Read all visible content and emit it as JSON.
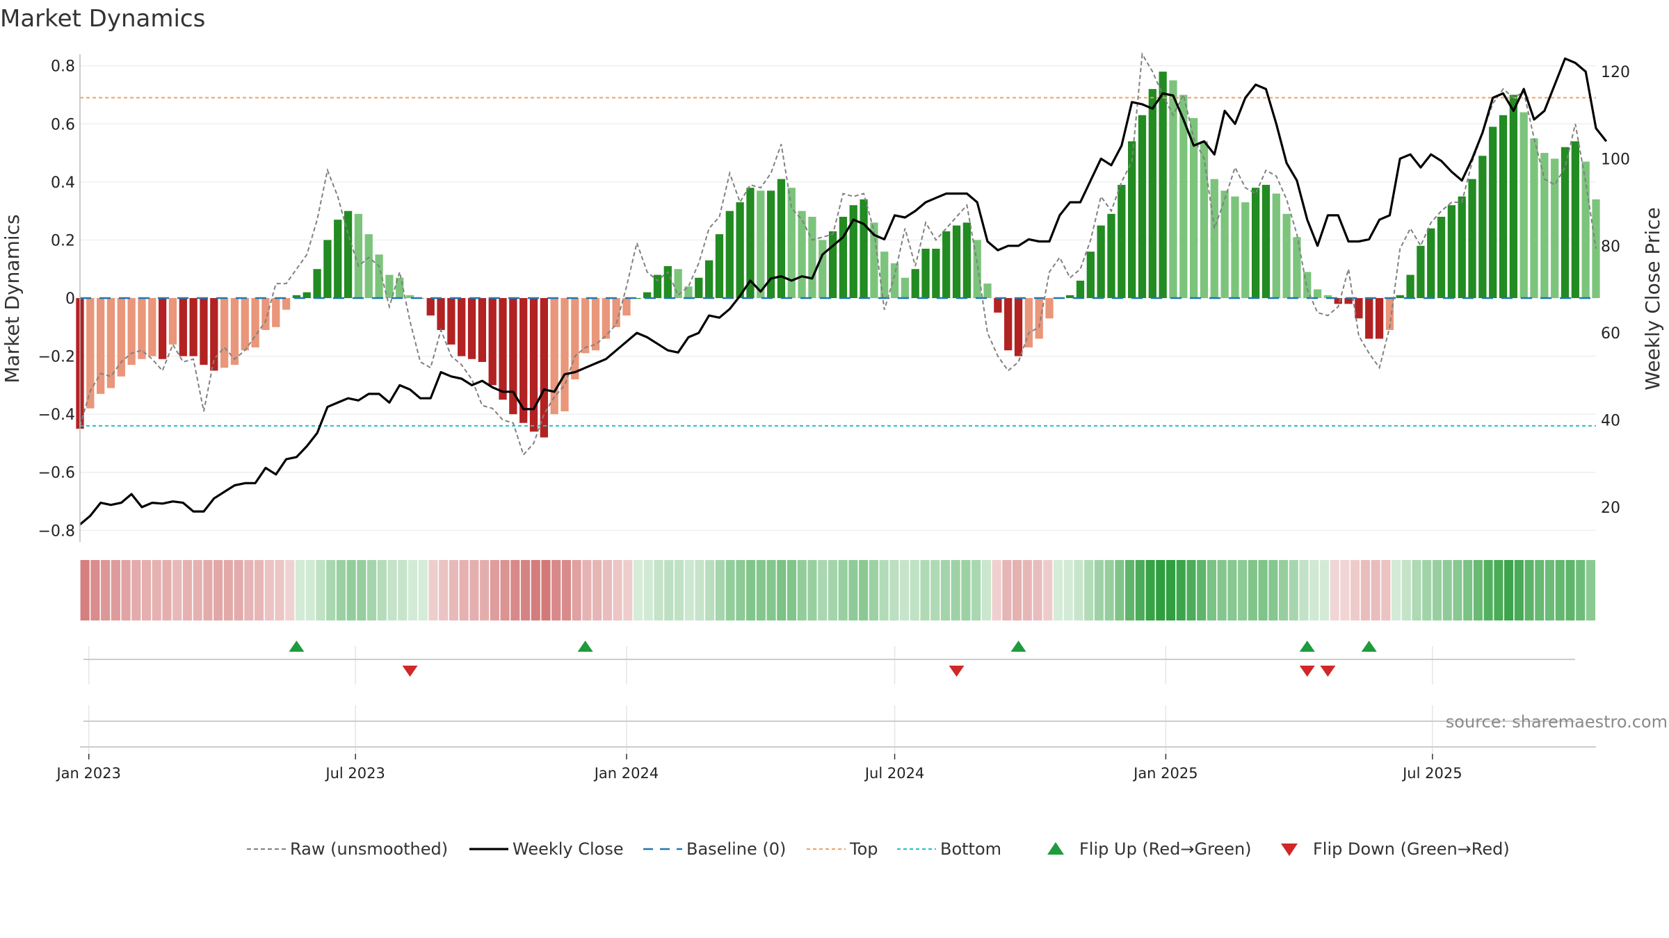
{
  "chart_data": {
    "type": "bar",
    "title": "Market Dynamics",
    "ylabel_left": "Market Dynamics",
    "ylabel_right": "Weekly Close Price",
    "ylim_left": [
      -0.84,
      0.84
    ],
    "ylim_right": [
      12,
      124
    ],
    "yticks_left": [
      "0.8",
      "0.6",
      "0.4",
      "0.2",
      "0",
      "−0.2",
      "−0.4",
      "−0.6",
      "−0.8"
    ],
    "yticks_left_values": [
      0.8,
      0.6,
      0.4,
      0.2,
      0,
      -0.2,
      -0.4,
      -0.6,
      -0.8
    ],
    "yticks_right": [
      "120",
      "100",
      "80",
      "60",
      "40",
      "20"
    ],
    "yticks_right_values": [
      120,
      100,
      80,
      60,
      40,
      20
    ],
    "x_start": "2022-12-26",
    "x_end": "2025-10-20",
    "xticks": [
      {
        "date": "2023-01-01",
        "label": "Jan 2023"
      },
      {
        "date": "2023-07-01",
        "label": "Jul 2023"
      },
      {
        "date": "2024-01-01",
        "label": "Jan 2024"
      },
      {
        "date": "2024-07-01",
        "label": "Jul 2024"
      },
      {
        "date": "2025-01-01",
        "label": "Jan 2025"
      },
      {
        "date": "2025-07-01",
        "label": "Jul 2025"
      }
    ],
    "first_week": "2022-12-26",
    "top_level": 0.69,
    "bottom_level": -0.44,
    "baseline": 0,
    "smoothed": [
      -0.45,
      -0.38,
      -0.33,
      -0.31,
      -0.27,
      -0.23,
      -0.21,
      -0.2,
      -0.21,
      -0.16,
      -0.2,
      -0.2,
      -0.23,
      -0.25,
      -0.24,
      -0.23,
      -0.18,
      -0.17,
      -0.11,
      -0.1,
      -0.04,
      0.01,
      0.02,
      0.1,
      0.2,
      0.27,
      0.3,
      0.29,
      0.22,
      0.15,
      0.08,
      0.07,
      0.01,
      0,
      -0.06,
      -0.11,
      -0.16,
      -0.2,
      -0.21,
      -0.22,
      -0.3,
      -0.35,
      -0.4,
      -0.43,
      -0.46,
      -0.48,
      -0.4,
      -0.39,
      -0.28,
      -0.19,
      -0.18,
      -0.14,
      -0.1,
      -0.06,
      0,
      0.02,
      0.08,
      0.11,
      0.1,
      0.04,
      0.07,
      0.13,
      0.22,
      0.3,
      0.33,
      0.38,
      0.37,
      0.37,
      0.41,
      0.38,
      0.3,
      0.28,
      0.2,
      0.23,
      0.28,
      0.32,
      0.34,
      0.26,
      0.16,
      0.12,
      0.07,
      0.1,
      0.17,
      0.17,
      0.23,
      0.25,
      0.26,
      0.2,
      0.05,
      -0.05,
      -0.18,
      -0.2,
      -0.17,
      -0.14,
      -0.07,
      0,
      0.01,
      0.06,
      0.16,
      0.25,
      0.29,
      0.39,
      0.54,
      0.63,
      0.72,
      0.78,
      0.75,
      0.7,
      0.62,
      0.54,
      0.41,
      0.37,
      0.35,
      0.33,
      0.38,
      0.39,
      0.36,
      0.29,
      0.21,
      0.09,
      0.03,
      0.01,
      -0.02,
      -0.02,
      -0.07,
      -0.14,
      -0.14,
      -0.11,
      0.01,
      0.08,
      0.18,
      0.24,
      0.28,
      0.32,
      0.35,
      0.41,
      0.49,
      0.59,
      0.63,
      0.7,
      0.64,
      0.55,
      0.5,
      0.48,
      0.52,
      0.54,
      0.47,
      0.34
    ],
    "raw_unsmoothed": [
      -0.44,
      -0.32,
      -0.26,
      -0.27,
      -0.22,
      -0.19,
      -0.18,
      -0.21,
      -0.25,
      -0.16,
      -0.22,
      -0.21,
      -0.39,
      -0.21,
      -0.17,
      -0.21,
      -0.18,
      -0.13,
      -0.08,
      0.05,
      0.05,
      0.1,
      0.15,
      0.27,
      0.44,
      0.35,
      0.22,
      0.11,
      0.14,
      0.11,
      -0.03,
      0.09,
      -0.08,
      -0.22,
      -0.24,
      -0.11,
      -0.2,
      -0.23,
      -0.28,
      -0.37,
      -0.38,
      -0.42,
      -0.43,
      -0.54,
      -0.5,
      -0.4,
      -0.34,
      -0.3,
      -0.2,
      -0.17,
      -0.16,
      -0.13,
      -0.09,
      0.04,
      0.19,
      0.09,
      0.06,
      0.09,
      0.01,
      0.04,
      0.12,
      0.24,
      0.28,
      0.43,
      0.33,
      0.39,
      0.38,
      0.43,
      0.53,
      0.31,
      0.27,
      0.2,
      0.21,
      0.22,
      0.36,
      0.35,
      0.36,
      0.23,
      -0.04,
      0.08,
      0.24,
      0.11,
      0.26,
      0.2,
      0.24,
      0.28,
      0.32,
      0.12,
      -0.12,
      -0.2,
      -0.25,
      -0.22,
      -0.12,
      -0.1,
      0.09,
      0.14,
      0.07,
      0.1,
      0.2,
      0.35,
      0.3,
      0.4,
      0.47,
      0.84,
      0.78,
      0.7,
      0.63,
      0.7,
      0.55,
      0.48,
      0.24,
      0.34,
      0.45,
      0.38,
      0.36,
      0.44,
      0.42,
      0.34,
      0.22,
      0.03,
      -0.05,
      -0.06,
      -0.03,
      0.1,
      -0.13,
      -0.19,
      -0.24,
      -0.1,
      0.17,
      0.24,
      0.18,
      0.26,
      0.3,
      0.33,
      0.33,
      0.47,
      0.57,
      0.67,
      0.72,
      0.69,
      0.71,
      0.55,
      0.41,
      0.39,
      0.45,
      0.6,
      0.4,
      0.17
    ],
    "weekly_close": [
      16,
      18,
      21,
      20.5,
      21,
      23,
      20,
      21,
      20.8,
      21.3,
      21,
      19,
      19,
      22,
      23.5,
      25,
      25.5,
      25.5,
      29,
      27.5,
      31,
      31.5,
      34,
      37,
      43,
      44,
      45,
      44.5,
      46,
      46,
      44,
      48,
      47,
      45,
      45,
      51,
      50,
      49.5,
      48,
      49,
      47.5,
      46.5,
      46.5,
      42.5,
      42.5,
      47,
      46.5,
      50.5,
      51,
      52,
      53,
      54,
      56,
      58,
      60,
      59,
      57.5,
      56,
      55.5,
      59,
      60,
      64,
      63.5,
      65.5,
      68.5,
      72,
      69.5,
      72.5,
      73,
      72,
      73,
      72.5,
      78,
      80,
      82,
      86,
      85,
      82.5,
      81.5,
      87,
      86.5,
      88,
      90,
      91,
      92,
      92,
      92,
      90,
      81,
      79,
      80,
      80,
      81.5,
      81,
      81,
      87,
      90,
      90,
      95,
      100,
      98.5,
      103,
      113,
      112.5,
      111.5,
      115,
      114.5,
      109,
      103,
      104,
      101,
      111,
      108,
      114,
      117,
      116,
      108,
      99,
      95,
      86,
      80,
      87,
      87,
      81,
      81,
      81.5,
      86,
      87,
      100,
      101,
      98,
      101,
      99.5,
      97,
      95,
      100,
      106,
      114,
      115,
      111,
      116,
      109,
      111,
      117,
      123,
      122,
      120,
      107,
      104
    ]
  },
  "flip_up_dates": [
    "2023-05-22",
    "2023-12-04",
    "2024-09-23",
    "2025-04-07",
    "2025-05-19"
  ],
  "flip_down_dates": [
    "2023-08-07",
    "2024-08-12",
    "2025-04-07",
    "2025-04-21"
  ],
  "colors": {
    "strong_red": "#b22222",
    "weak_red": "#e9967a",
    "strong_green": "#228b22",
    "weak_green": "#7cc47c",
    "raw_line": "#808080",
    "close_line": "#000000",
    "baseline": "#1f77b4",
    "top": "#f0a060",
    "bottom": "#20c0c0",
    "flip_up": "#1e9b3c",
    "flip_down": "#d02828"
  },
  "legend": [
    {
      "key": "raw",
      "label": "Raw (unsmoothed)"
    },
    {
      "key": "close",
      "label": "Weekly Close"
    },
    {
      "key": "baseline",
      "label": "Baseline (0)"
    },
    {
      "key": "top",
      "label": "Top"
    },
    {
      "key": "bottom",
      "label": "Bottom"
    },
    {
      "key": "flip_up",
      "label": "Flip Up (Red→Green)"
    },
    {
      "key": "flip_down",
      "label": "Flip Down (Green→Red)"
    }
  ],
  "source": "source: sharemaestro.com"
}
